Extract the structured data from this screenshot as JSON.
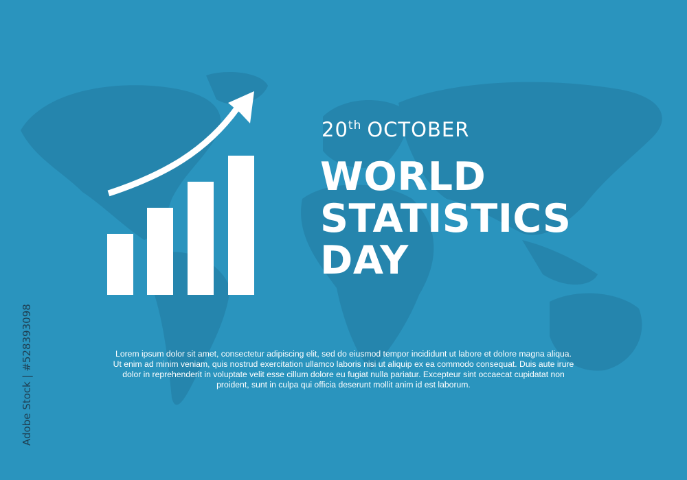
{
  "colors": {
    "background": "#2a94be",
    "map": "#2585ad",
    "foreground": "#ffffff",
    "credit": "#1e3f52"
  },
  "icon": "bar-chart-growth-arrow-icon",
  "chart_bars_relative": [
    0.44,
    0.63,
    0.82,
    1.0
  ],
  "title": {
    "day": "20",
    "ordinal": "th",
    "month": "OCTOBER",
    "line1": "WORLD",
    "line2": "STATISTICS",
    "line3": "DAY"
  },
  "body": {
    "line1": "Lorem ipsum dolor sit amet, consectetur adipiscing elit, sed do eiusmod tempor incididunt ut labore et dolore magna aliqua.",
    "line2": "Ut enim ad minim veniam, quis nostrud exercitation ullamco laboris nisi ut aliquip ex ea commodo consequat. Duis aute irure",
    "line3": "dolor in reprehenderit in voluptate velit esse cillum dolore eu fugiat nulla pariatur. Excepteur sint occaecat cupidatat non",
    "line4": "proident, sunt in culpa qui officia deserunt mollit anim id est laborum."
  },
  "credit": "Adobe Stock | #528393098",
  "watermark": "Adobe Stock"
}
